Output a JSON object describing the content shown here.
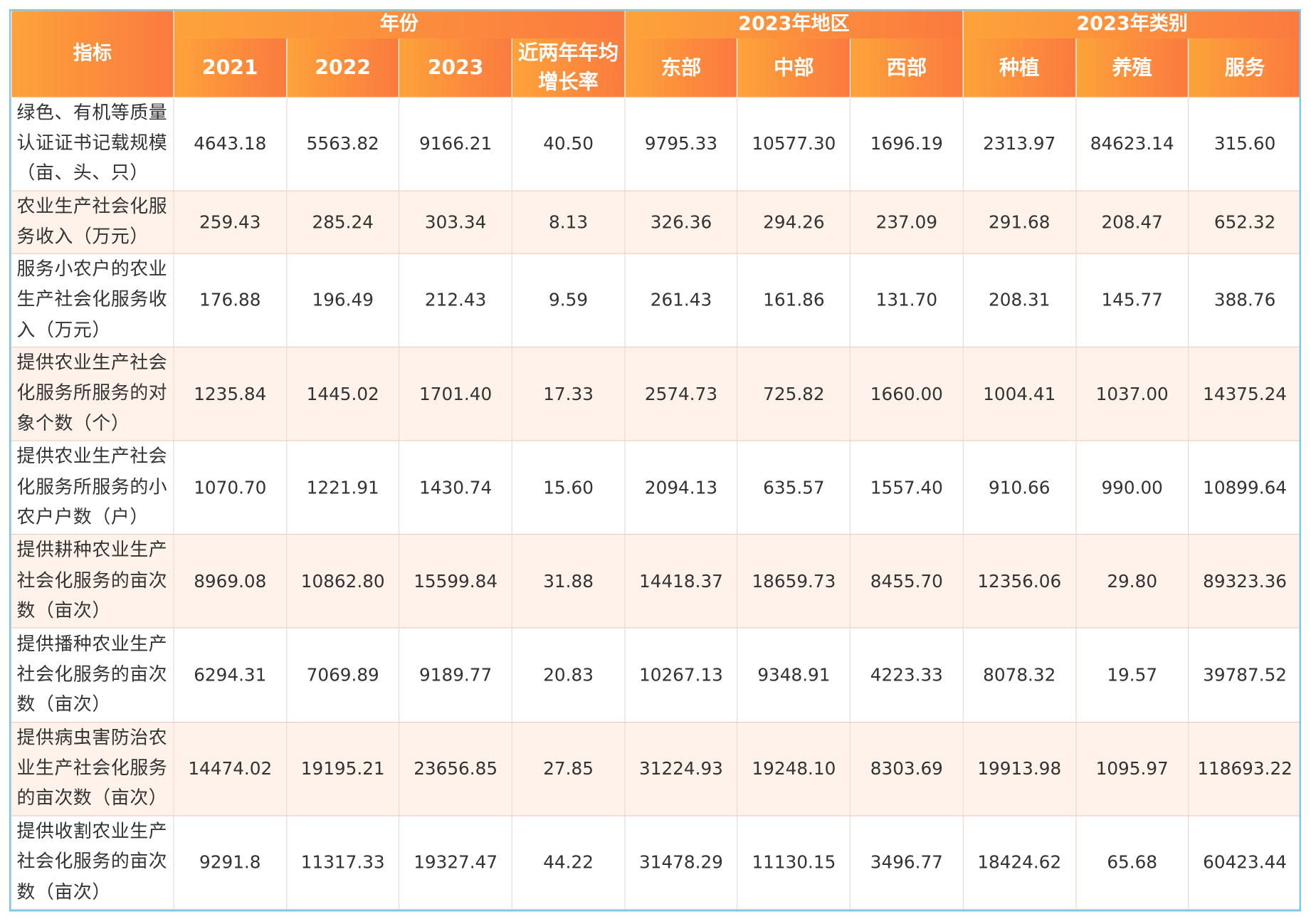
{
  "header": {
    "indicator": "指标",
    "group_year": "年份",
    "group_region": "2023年地区",
    "group_category": "2023年类别",
    "columns": [
      "2021",
      "2022",
      "2023",
      "近两年年均增长率",
      "东部",
      "中部",
      "西部",
      "种植",
      "养殖",
      "服务"
    ]
  },
  "rows": [
    {
      "label": "绿色、有机等质量认证证书记载规模（亩、头、只）",
      "values": [
        "4643.18",
        "5563.82",
        "9166.21",
        "40.50",
        "9795.33",
        "10577.30",
        "1696.19",
        "2313.97",
        "84623.14",
        "315.60"
      ]
    },
    {
      "label": "农业生产社会化服务收入（万元）",
      "values": [
        "259.43",
        "285.24",
        "303.34",
        "8.13",
        "326.36",
        "294.26",
        "237.09",
        "291.68",
        "208.47",
        "652.32"
      ]
    },
    {
      "label": "服务小农户的农业生产社会化服务收入（万元）",
      "values": [
        "176.88",
        "196.49",
        "212.43",
        "9.59",
        "261.43",
        "161.86",
        "131.70",
        "208.31",
        "145.77",
        "388.76"
      ]
    },
    {
      "label": "提供农业生产社会化服务所服务的对象个数（个）",
      "values": [
        "1235.84",
        "1445.02",
        "1701.40",
        "17.33",
        "2574.73",
        "725.82",
        "1660.00",
        "1004.41",
        "1037.00",
        "14375.24"
      ]
    },
    {
      "label": "提供农业生产社会化服务所服务的小农户户数（户）",
      "values": [
        "1070.70",
        "1221.91",
        "1430.74",
        "15.60",
        "2094.13",
        "635.57",
        "1557.40",
        "910.66",
        "990.00",
        "10899.64"
      ]
    },
    {
      "label": "提供耕种农业生产社会化服务的亩次数（亩次）",
      "values": [
        "8969.08",
        "10862.80",
        "15599.84",
        "31.88",
        "14418.37",
        "18659.73",
        "8455.70",
        "12356.06",
        "29.80",
        "89323.36"
      ]
    },
    {
      "label": "提供播种农业生产社会化服务的亩次数（亩次）",
      "values": [
        "6294.31",
        "7069.89",
        "9189.77",
        "20.83",
        "10267.13",
        "9348.91",
        "4223.33",
        "8078.32",
        "19.57",
        "39787.52"
      ]
    },
    {
      "label": "提供病虫害防治农业生产社会化服务的亩次数（亩次）",
      "values": [
        "14474.02",
        "19195.21",
        "23656.85",
        "27.85",
        "31224.93",
        "19248.10",
        "8303.69",
        "19913.98",
        "1095.97",
        "118693.22"
      ]
    },
    {
      "label": "提供收割农业生产社会化服务的亩次数（亩次）",
      "values": [
        "9291.8",
        "11317.33",
        "19327.47",
        "44.22",
        "31478.29",
        "11130.15",
        "3496.77",
        "18424.62",
        "65.68",
        "60423.44"
      ]
    }
  ]
}
